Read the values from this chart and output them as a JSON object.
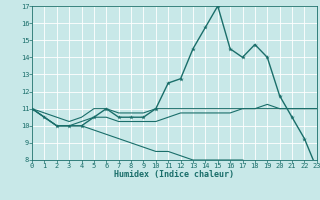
{
  "xlabel": "Humidex (Indice chaleur)",
  "xlim": [
    0,
    23
  ],
  "ylim": [
    8,
    17
  ],
  "yticks": [
    8,
    9,
    10,
    11,
    12,
    13,
    14,
    15,
    16,
    17
  ],
  "xticks": [
    0,
    1,
    2,
    3,
    4,
    5,
    6,
    7,
    8,
    9,
    10,
    11,
    12,
    13,
    14,
    15,
    16,
    17,
    18,
    19,
    20,
    21,
    22,
    23
  ],
  "bg_color": "#c8e8e8",
  "grid_color": "#aad4d4",
  "line_color": "#1a6e6a",
  "series": [
    {
      "x": [
        0,
        1,
        2,
        3,
        4,
        5,
        6,
        7,
        8,
        9,
        10,
        11,
        12,
        13,
        14,
        15,
        16,
        17,
        18,
        19,
        20,
        21,
        22,
        23
      ],
      "y": [
        11,
        10.5,
        10,
        10,
        10,
        10.5,
        11,
        10.5,
        10.5,
        10.5,
        11,
        12.5,
        12.75,
        14.5,
        15.75,
        17,
        14.5,
        14,
        14.75,
        14,
        11.75,
        10.5,
        9.25,
        7.5
      ],
      "marker": true,
      "lw": 1.0
    },
    {
      "x": [
        0,
        1,
        2,
        3,
        4,
        5,
        6,
        7,
        8,
        9,
        10,
        11,
        12,
        13,
        14,
        15,
        16,
        17,
        18,
        19,
        20,
        21,
        22,
        23
      ],
      "y": [
        11,
        10.75,
        10.5,
        10.25,
        10.5,
        11,
        11,
        10.75,
        10.75,
        10.75,
        11,
        11,
        11,
        11,
        11,
        11,
        11,
        11,
        11,
        11,
        11,
        11,
        11,
        11
      ],
      "marker": false,
      "lw": 0.8
    },
    {
      "x": [
        0,
        1,
        2,
        3,
        4,
        5,
        6,
        7,
        8,
        9,
        10,
        11,
        12,
        13,
        14,
        15,
        16,
        17,
        18,
        19,
        20,
        21,
        22,
        23
      ],
      "y": [
        11,
        10.5,
        10,
        10,
        10,
        9.75,
        9.5,
        9.25,
        9.0,
        8.75,
        8.5,
        8.5,
        8.25,
        8.0,
        8.0,
        8.0,
        8.0,
        8.0,
        7.75,
        7.75,
        7.75,
        7.75,
        7.75,
        7.5
      ],
      "marker": false,
      "lw": 0.8
    },
    {
      "x": [
        0,
        1,
        2,
        3,
        4,
        5,
        6,
        7,
        8,
        9,
        10,
        11,
        12,
        13,
        14,
        15,
        16,
        17,
        18,
        19,
        20,
        21,
        22,
        23
      ],
      "y": [
        11,
        10.5,
        10,
        10,
        10.25,
        10.5,
        10.5,
        10.25,
        10.25,
        10.25,
        10.25,
        10.5,
        10.75,
        10.75,
        10.75,
        10.75,
        10.75,
        11,
        11,
        11.25,
        11,
        11,
        11,
        11
      ],
      "marker": false,
      "lw": 0.8
    }
  ]
}
